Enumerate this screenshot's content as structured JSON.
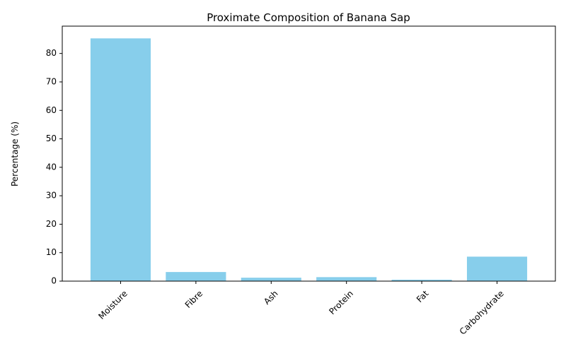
{
  "chart_data": {
    "type": "bar",
    "title": "Proximate Composition of Banana Sap",
    "xlabel": "",
    "ylabel": "Percentage (%)",
    "categories": [
      "Moisture",
      "Fibre",
      "Ash",
      "Protein",
      "Fat",
      "Carbohydrate"
    ],
    "values": [
      85.3,
      3.2,
      1.2,
      1.4,
      0.5,
      8.6
    ],
    "ylim": [
      0,
      89.6
    ],
    "yticks": [
      0,
      10,
      20,
      30,
      40,
      50,
      60,
      70,
      80
    ],
    "grid": false,
    "legend": "none",
    "bar_color": "#87ceeb",
    "x_tick_rotation": 45
  }
}
